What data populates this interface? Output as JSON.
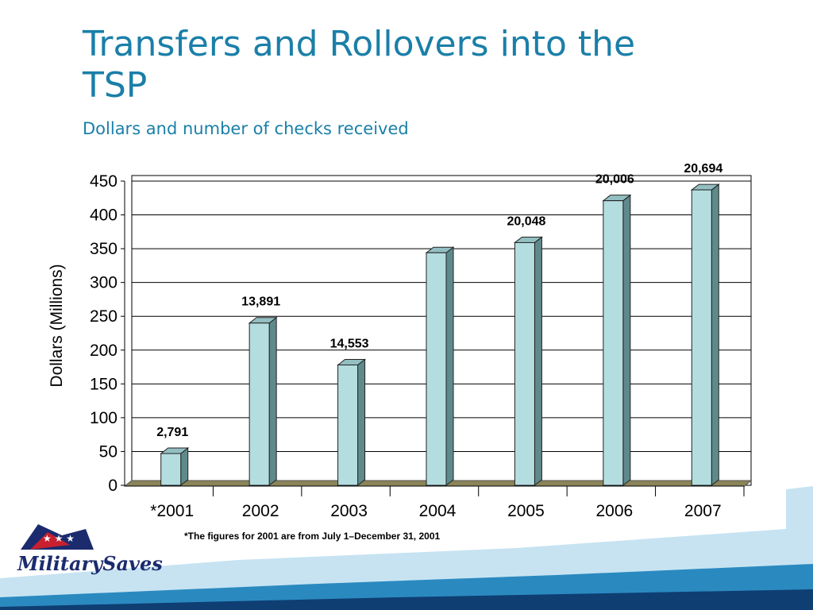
{
  "slide": {
    "title": "Transfers and Rollovers into the TSP",
    "subtitle": "Dollars and number of checks received",
    "footnote": "*The figures for 2001 are from July 1–December 31, 2001",
    "logo_text": "MilitarySaves"
  },
  "colors": {
    "title": "#1a7fa8",
    "bar_front": "#b4dde0",
    "bar_top": "#93bfc2",
    "bar_side": "#5f8a8c",
    "floor": "#8a8458",
    "band_light": "#c7e3f2",
    "band_mid": "#2a8ac0",
    "band_dark": "#0f3e73"
  },
  "chart_data": {
    "type": "bar",
    "categories": [
      "*2001",
      "2002",
      "2003",
      "2004",
      "2005",
      "2006",
      "2007"
    ],
    "values": [
      47,
      240,
      178,
      344,
      359,
      421,
      437
    ],
    "data_labels": [
      "2,791",
      "13,891",
      "14,553",
      "",
      "20,048",
      "20,006",
      "20,694"
    ],
    "ylabel": "Dollars    (Millions)",
    "xlabel": "",
    "ylim": [
      0,
      450
    ],
    "yticks": [
      0,
      50,
      100,
      150,
      200,
      250,
      300,
      350,
      400,
      450
    ],
    "grid": true,
    "legend": "none"
  }
}
